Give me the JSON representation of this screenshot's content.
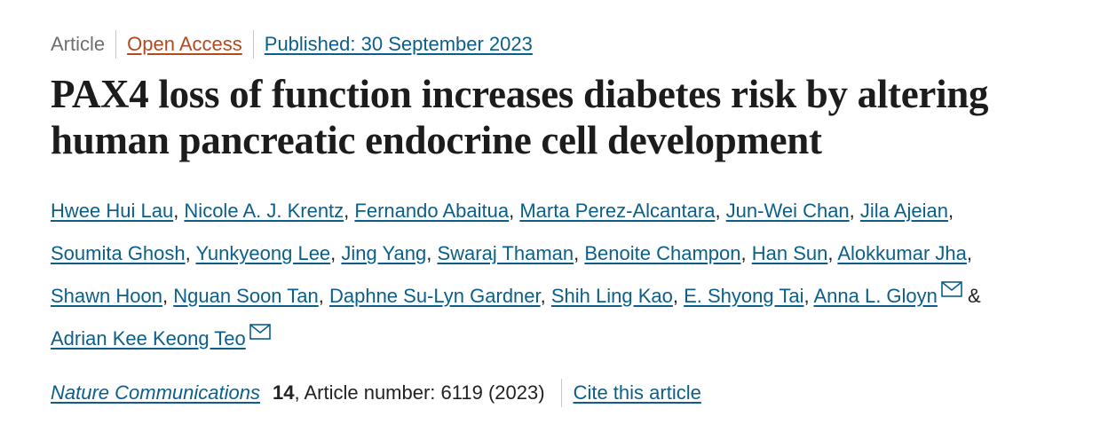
{
  "meta": {
    "article_type": "Article",
    "open_access_label": "Open Access",
    "published_label": "Published: 30 September 2023"
  },
  "title": {
    "line1": "PAX4 loss of function increases diabetes risk by altering",
    "line2": "human pancreatic endocrine cell development"
  },
  "authors": {
    "lines": [
      [
        {
          "name": "Hwee Hui Lau",
          "sep": ", "
        },
        {
          "name": "Nicole A. J. Krentz",
          "sep": ", "
        },
        {
          "name": "Fernando Abaitua",
          "sep": ", "
        },
        {
          "name": "Marta Perez-Alcantara",
          "sep": ", "
        },
        {
          "name": "Jun-Wei Chan",
          "sep": ", "
        },
        {
          "name": "Jila Ajeian",
          "sep": ","
        }
      ],
      [
        {
          "name": "Soumita Ghosh",
          "sep": ", "
        },
        {
          "name": "Yunkyeong Lee",
          "sep": ", "
        },
        {
          "name": "Jing Yang",
          "sep": ", "
        },
        {
          "name": "Swaraj Thaman",
          "sep": ", "
        },
        {
          "name": "Benoite Champon",
          "sep": ", "
        },
        {
          "name": "Han Sun",
          "sep": ", "
        },
        {
          "name": "Alokkumar Jha",
          "sep": ","
        }
      ],
      [
        {
          "name": "Shawn Hoon",
          "sep": ", "
        },
        {
          "name": "Nguan Soon Tan",
          "sep": ", "
        },
        {
          "name": "Daphne Su-Lyn Gardner",
          "sep": ", "
        },
        {
          "name": "Shih Ling Kao",
          "sep": ", "
        },
        {
          "name": "E. Shyong Tai",
          "sep": ", "
        },
        {
          "name": "Anna L. Gloyn",
          "sep": " & ",
          "mail": true
        }
      ],
      [
        {
          "name": "Adrian Kee Keong Teo",
          "sep": "",
          "mail": true
        }
      ]
    ]
  },
  "citation": {
    "journal": "Nature Communications",
    "volume": "14",
    "article_number_text": ", Article number: 6119 (2023)",
    "cite_label": "Cite this article"
  },
  "colors": {
    "link": "#0b5f8a",
    "open_access": "#b14a1f",
    "muted": "#6f6f6f",
    "text": "#222222"
  },
  "icons": {
    "mail": "envelope-icon"
  }
}
